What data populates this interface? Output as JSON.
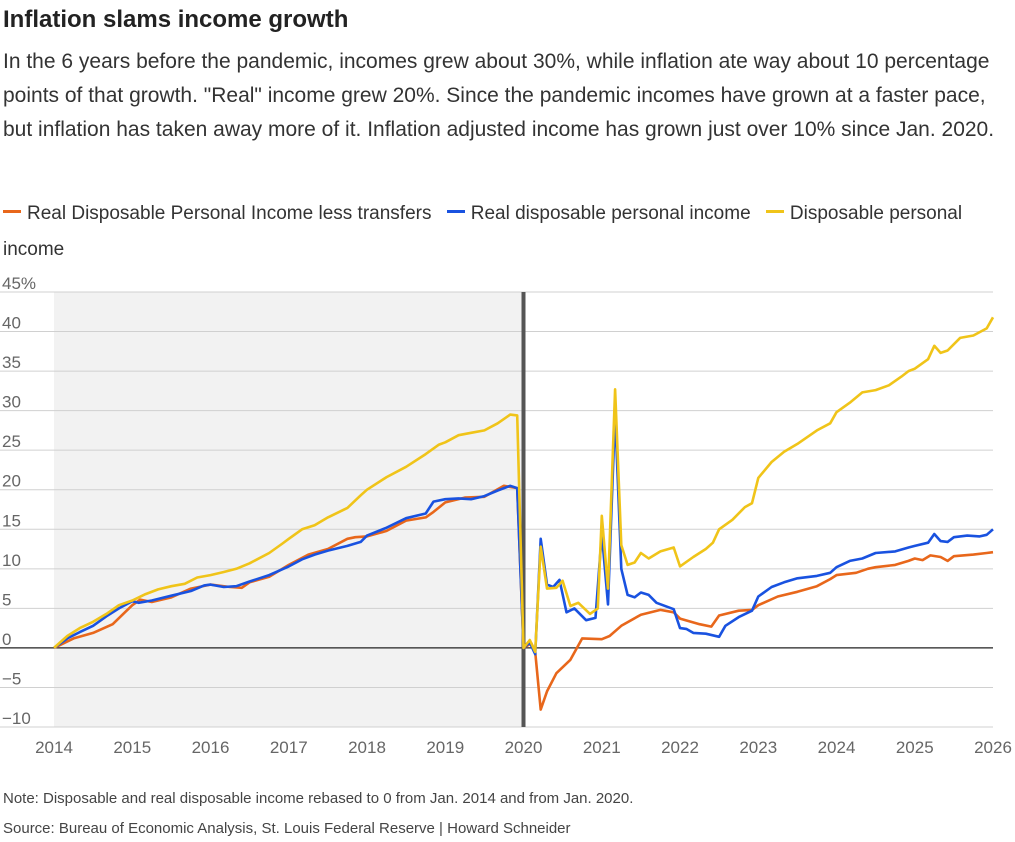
{
  "title": "Inflation slams income growth",
  "subtitle": "In the 6 years before the pandemic, incomes grew about 30%, while inflation ate way about 10 percentage points of that growth. \"Real\" income grew 20%. Since the pandemic incomes have grown at a faster pace, but inflation has taken away more of it. Inflation adjusted income has grown just over 10% since Jan. 2020.",
  "note": "Note: Disposable and real disposable income rebased to 0 from Jan. 2014 and from Jan. 2020.",
  "source": "Source: Bureau of Economic Analysis, St. Louis Federal Reserve | Howard Schneider",
  "chart_data": {
    "type": "line",
    "title": "Inflation slams income growth",
    "xlabel": "",
    "ylabel": "",
    "x_ticks": [
      "2014",
      "2015",
      "2016",
      "2017",
      "2018",
      "2019",
      "2020",
      "2021",
      "2022",
      "2023",
      "2024",
      "2025",
      "2026"
    ],
    "y_ticks": [
      "45%",
      "40",
      "35",
      "30",
      "25",
      "20",
      "15",
      "10",
      "5",
      "0",
      "−5",
      "−10"
    ],
    "xlim": [
      2014,
      2026
    ],
    "ylim": [
      -10,
      45
    ],
    "grid": true,
    "legend": "top-left",
    "shaded_region": [
      2014,
      2020
    ],
    "vertical_marker": 2020,
    "colors": {
      "orange": "#e8671b",
      "blue": "#1952e0",
      "yellow": "#f0c419",
      "shade": "#f2f2f2",
      "grid": "#d0d0d0",
      "marker": "#555555"
    },
    "series": [
      {
        "name": "Real Disposable Personal Income less transfers",
        "color": "#e8671b",
        "points": [
          [
            2014.0,
            0
          ],
          [
            2014.25,
            1.2
          ],
          [
            2014.5,
            1.9
          ],
          [
            2014.75,
            3
          ],
          [
            2015.0,
            5.4
          ],
          [
            2015.1,
            6.1
          ],
          [
            2015.25,
            5.8
          ],
          [
            2015.5,
            6.4
          ],
          [
            2015.75,
            7.5
          ],
          [
            2016.0,
            8
          ],
          [
            2016.25,
            7.7
          ],
          [
            2016.4,
            7.6
          ],
          [
            2016.5,
            8.3
          ],
          [
            2016.75,
            9
          ],
          [
            2017.0,
            10.5
          ],
          [
            2017.25,
            11.8
          ],
          [
            2017.5,
            12.5
          ],
          [
            2017.75,
            13.8
          ],
          [
            2017.85,
            14
          ],
          [
            2018.0,
            14.1
          ],
          [
            2018.25,
            14.8
          ],
          [
            2018.5,
            16.1
          ],
          [
            2018.75,
            16.5
          ],
          [
            2018.85,
            17.2
          ],
          [
            2019.0,
            18.4
          ],
          [
            2019.25,
            19
          ],
          [
            2019.5,
            19.1
          ],
          [
            2019.75,
            20.5
          ],
          [
            2019.92,
            20.2
          ],
          [
            2020.0,
            0
          ],
          [
            2020.1,
            0.6
          ],
          [
            2020.15,
            -0.5
          ],
          [
            2020.22,
            -7.8
          ],
          [
            2020.3,
            -5.5
          ],
          [
            2020.42,
            -3.2
          ],
          [
            2020.6,
            -1.5
          ],
          [
            2020.75,
            1.2
          ],
          [
            2021.0,
            1.1
          ],
          [
            2021.1,
            1.5
          ],
          [
            2021.25,
            2.8
          ],
          [
            2021.5,
            4.2
          ],
          [
            2021.75,
            4.8
          ],
          [
            2021.92,
            4.5
          ],
          [
            2022.0,
            3.7
          ],
          [
            2022.25,
            3
          ],
          [
            2022.4,
            2.7
          ],
          [
            2022.5,
            4.1
          ],
          [
            2022.75,
            4.7
          ],
          [
            2022.92,
            4.8
          ],
          [
            2023.0,
            5.4
          ],
          [
            2023.25,
            6.5
          ],
          [
            2023.5,
            7.1
          ],
          [
            2023.75,
            7.8
          ],
          [
            2023.92,
            8.7
          ],
          [
            2024.0,
            9.2
          ],
          [
            2024.25,
            9.5
          ],
          [
            2024.4,
            10
          ],
          [
            2024.5,
            10.2
          ],
          [
            2024.75,
            10.5
          ],
          [
            2024.92,
            11
          ],
          [
            2025.0,
            11.3
          ],
          [
            2025.1,
            11.1
          ],
          [
            2025.2,
            11.7
          ],
          [
            2025.33,
            11.5
          ],
          [
            2025.42,
            11
          ],
          [
            2025.5,
            11.6
          ],
          [
            2025.75,
            11.8
          ],
          [
            2025.92,
            12
          ],
          [
            2026.0,
            12.1
          ]
        ]
      },
      {
        "name": "Real disposable personal income",
        "color": "#1952e0",
        "points": [
          [
            2014.0,
            0
          ],
          [
            2014.17,
            1.2
          ],
          [
            2014.33,
            2
          ],
          [
            2014.5,
            2.8
          ],
          [
            2014.67,
            4
          ],
          [
            2014.83,
            5
          ],
          [
            2015.0,
            5.9
          ],
          [
            2015.08,
            5.7
          ],
          [
            2015.25,
            6
          ],
          [
            2015.5,
            6.6
          ],
          [
            2015.75,
            7.2
          ],
          [
            2015.92,
            7.9
          ],
          [
            2016.0,
            8
          ],
          [
            2016.17,
            7.7
          ],
          [
            2016.33,
            7.8
          ],
          [
            2016.5,
            8.4
          ],
          [
            2016.75,
            9.2
          ],
          [
            2017.0,
            10.3
          ],
          [
            2017.17,
            11.2
          ],
          [
            2017.33,
            11.8
          ],
          [
            2017.5,
            12.3
          ],
          [
            2017.75,
            12.9
          ],
          [
            2017.92,
            13.4
          ],
          [
            2018.0,
            14.2
          ],
          [
            2018.25,
            15.2
          ],
          [
            2018.5,
            16.4
          ],
          [
            2018.75,
            17
          ],
          [
            2018.85,
            18.5
          ],
          [
            2019.0,
            18.8
          ],
          [
            2019.17,
            18.9
          ],
          [
            2019.33,
            18.8
          ],
          [
            2019.5,
            19.2
          ],
          [
            2019.67,
            19.9
          ],
          [
            2019.83,
            20.5
          ],
          [
            2019.92,
            20.2
          ],
          [
            2020.0,
            0
          ],
          [
            2020.08,
            0.7
          ],
          [
            2020.15,
            -0.8
          ],
          [
            2020.22,
            13.8
          ],
          [
            2020.3,
            8
          ],
          [
            2020.38,
            7.7
          ],
          [
            2020.46,
            8.6
          ],
          [
            2020.55,
            4.5
          ],
          [
            2020.65,
            5
          ],
          [
            2020.8,
            3.5
          ],
          [
            2020.92,
            3.8
          ],
          [
            2021.0,
            14.5
          ],
          [
            2021.08,
            5.5
          ],
          [
            2021.17,
            29.8
          ],
          [
            2021.25,
            10
          ],
          [
            2021.33,
            6.7
          ],
          [
            2021.42,
            6.4
          ],
          [
            2021.5,
            7
          ],
          [
            2021.6,
            6.7
          ],
          [
            2021.7,
            5.7
          ],
          [
            2021.92,
            4.9
          ],
          [
            2022.0,
            2.5
          ],
          [
            2022.08,
            2.4
          ],
          [
            2022.17,
            1.9
          ],
          [
            2022.33,
            1.8
          ],
          [
            2022.5,
            1.4
          ],
          [
            2022.58,
            2.8
          ],
          [
            2022.75,
            3.9
          ],
          [
            2022.92,
            4.7
          ],
          [
            2023.0,
            6.5
          ],
          [
            2023.17,
            7.7
          ],
          [
            2023.33,
            8.3
          ],
          [
            2023.5,
            8.8
          ],
          [
            2023.75,
            9.1
          ],
          [
            2023.92,
            9.5
          ],
          [
            2024.0,
            10.2
          ],
          [
            2024.17,
            11
          ],
          [
            2024.33,
            11.3
          ],
          [
            2024.5,
            12
          ],
          [
            2024.75,
            12.2
          ],
          [
            2024.92,
            12.7
          ],
          [
            2025.0,
            12.9
          ],
          [
            2025.17,
            13.3
          ],
          [
            2025.25,
            14.4
          ],
          [
            2025.33,
            13.5
          ],
          [
            2025.42,
            13.4
          ],
          [
            2025.5,
            14
          ],
          [
            2025.67,
            14.2
          ],
          [
            2025.83,
            14.1
          ],
          [
            2025.92,
            14.3
          ],
          [
            2026.0,
            15
          ]
        ]
      },
      {
        "name": "Disposable personal income",
        "color": "#f0c419",
        "points": [
          [
            2014.0,
            0
          ],
          [
            2014.17,
            1.5
          ],
          [
            2014.33,
            2.5
          ],
          [
            2014.5,
            3.3
          ],
          [
            2014.67,
            4.3
          ],
          [
            2014.83,
            5.4
          ],
          [
            2015.0,
            6
          ],
          [
            2015.17,
            6.8
          ],
          [
            2015.33,
            7.4
          ],
          [
            2015.5,
            7.8
          ],
          [
            2015.67,
            8.1
          ],
          [
            2015.83,
            8.9
          ],
          [
            2016.0,
            9.2
          ],
          [
            2016.17,
            9.6
          ],
          [
            2016.33,
            10
          ],
          [
            2016.5,
            10.7
          ],
          [
            2016.75,
            12
          ],
          [
            2016.92,
            13.2
          ],
          [
            2017.0,
            13.8
          ],
          [
            2017.17,
            15
          ],
          [
            2017.33,
            15.5
          ],
          [
            2017.5,
            16.5
          ],
          [
            2017.75,
            17.7
          ],
          [
            2017.92,
            19.3
          ],
          [
            2018.0,
            20
          ],
          [
            2018.25,
            21.6
          ],
          [
            2018.5,
            22.9
          ],
          [
            2018.75,
            24.5
          ],
          [
            2018.92,
            25.7
          ],
          [
            2019.0,
            26
          ],
          [
            2019.17,
            26.9
          ],
          [
            2019.33,
            27.2
          ],
          [
            2019.5,
            27.5
          ],
          [
            2019.67,
            28.4
          ],
          [
            2019.83,
            29.5
          ],
          [
            2019.92,
            29.4
          ],
          [
            2020.0,
            0
          ],
          [
            2020.08,
            1
          ],
          [
            2020.15,
            -0.5
          ],
          [
            2020.22,
            12.8
          ],
          [
            2020.3,
            7.5
          ],
          [
            2020.42,
            7.6
          ],
          [
            2020.5,
            8.5
          ],
          [
            2020.6,
            5.3
          ],
          [
            2020.7,
            5.7
          ],
          [
            2020.85,
            4.3
          ],
          [
            2020.95,
            5
          ],
          [
            2021.0,
            16.7
          ],
          [
            2021.08,
            7.5
          ],
          [
            2021.17,
            32.7
          ],
          [
            2021.25,
            13
          ],
          [
            2021.33,
            10.5
          ],
          [
            2021.42,
            10.8
          ],
          [
            2021.5,
            12
          ],
          [
            2021.6,
            11.3
          ],
          [
            2021.75,
            12.2
          ],
          [
            2021.92,
            12.7
          ],
          [
            2022.0,
            10.3
          ],
          [
            2022.17,
            11.5
          ],
          [
            2022.33,
            12.5
          ],
          [
            2022.42,
            13.3
          ],
          [
            2022.5,
            15
          ],
          [
            2022.67,
            16.2
          ],
          [
            2022.83,
            17.8
          ],
          [
            2022.92,
            18.3
          ],
          [
            2023.0,
            21.5
          ],
          [
            2023.17,
            23.5
          ],
          [
            2023.33,
            24.8
          ],
          [
            2023.5,
            25.8
          ],
          [
            2023.75,
            27.5
          ],
          [
            2023.92,
            28.4
          ],
          [
            2024.0,
            29.8
          ],
          [
            2024.17,
            31
          ],
          [
            2024.33,
            32.3
          ],
          [
            2024.5,
            32.6
          ],
          [
            2024.67,
            33.2
          ],
          [
            2024.83,
            34.3
          ],
          [
            2024.92,
            35
          ],
          [
            2025.0,
            35.3
          ],
          [
            2025.17,
            36.5
          ],
          [
            2025.25,
            38.2
          ],
          [
            2025.33,
            37.3
          ],
          [
            2025.42,
            37.6
          ],
          [
            2025.58,
            39.2
          ],
          [
            2025.75,
            39.5
          ],
          [
            2025.92,
            40.4
          ],
          [
            2026.0,
            41.8
          ]
        ]
      }
    ]
  }
}
